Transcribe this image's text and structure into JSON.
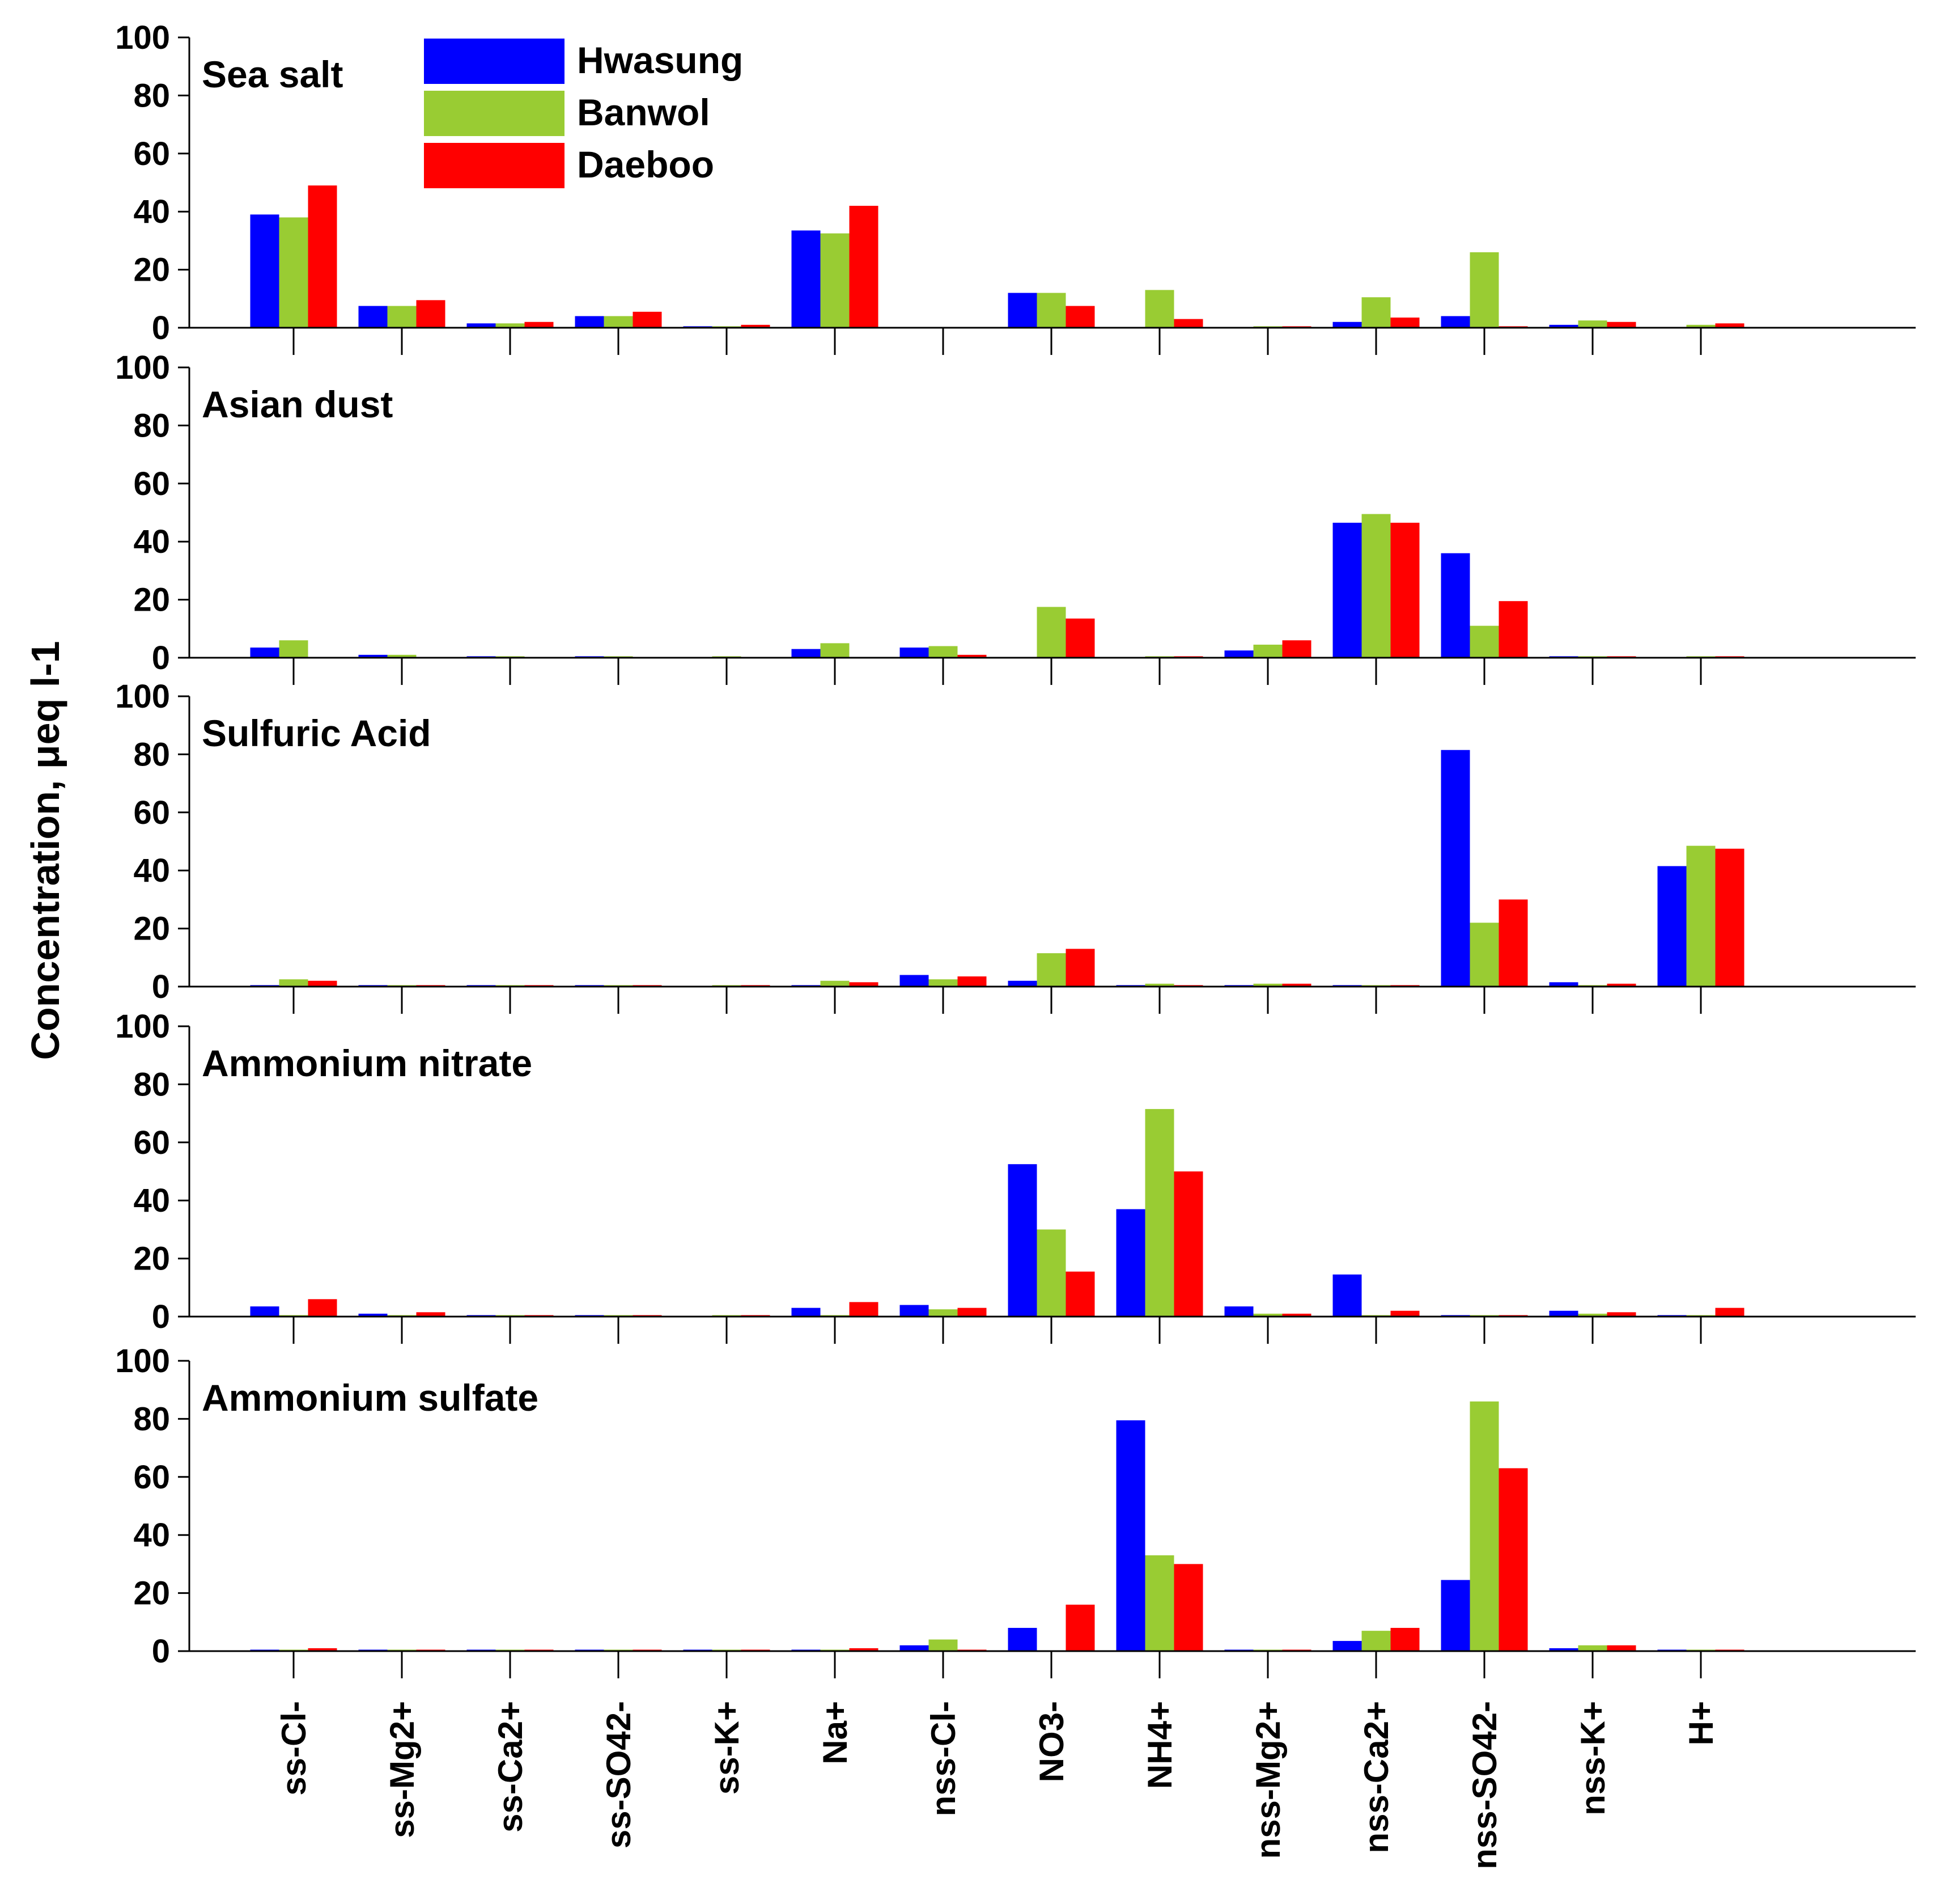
{
  "chart_data": {
    "type": "bar",
    "ylabel": "Concentration, μeq l-1",
    "ylim": [
      0,
      100
    ],
    "yticks": [
      "0",
      "20",
      "40",
      "60",
      "80",
      "100"
    ],
    "categories": [
      "ss-Cl-",
      "ss-Mg2+",
      "ss-Ca2+",
      "ss-SO42-",
      "ss-K+",
      "Na+",
      "nss-Cl-",
      "NO3-",
      "NH4+",
      "nss-Mg2+",
      "nss-Ca2+",
      "nss-SO42-",
      "nss-K+",
      "H+"
    ],
    "legend": [
      {
        "name": "Hwasung",
        "color": "#0000ff"
      },
      {
        "name": "Banwol",
        "color": "#99cc33"
      },
      {
        "name": "Daeboo",
        "color": "#ff0000"
      }
    ],
    "panels": [
      {
        "title": "Sea salt",
        "series": [
          {
            "name": "Hwasung",
            "values": [
              39,
              7.5,
              1.5,
              4,
              0.5,
              33.5,
              0,
              12,
              0,
              0,
              2,
              4,
              1,
              0
            ]
          },
          {
            "name": "Banwol",
            "values": [
              38,
              7.5,
              1.5,
              4,
              0.5,
              32.5,
              0,
              12,
              13,
              0.5,
              10.5,
              26,
              2.5,
              1
            ]
          },
          {
            "name": "Daeboo",
            "values": [
              49,
              9.5,
              2,
              5.5,
              1,
              42,
              0,
              7.5,
              3,
              0.5,
              3.5,
              0.5,
              2,
              1.5
            ]
          }
        ]
      },
      {
        "title": "Asian dust",
        "series": [
          {
            "name": "Hwasung",
            "values": [
              3.5,
              1,
              0.5,
              0.5,
              0,
              3,
              3.5,
              0,
              0,
              2.5,
              46.5,
              36,
              0.5,
              0
            ]
          },
          {
            "name": "Banwol",
            "values": [
              6,
              1,
              0.5,
              0.5,
              0.5,
              5,
              4,
              17.5,
              0.5,
              4.5,
              49.5,
              11,
              0.5,
              0.5
            ]
          },
          {
            "name": "Daeboo",
            "values": [
              0,
              0,
              0,
              0,
              0,
              0,
              1,
              13.5,
              0.5,
              6,
              46.5,
              19.5,
              0.5,
              0.5
            ]
          }
        ]
      },
      {
        "title": "Sulfuric Acid",
        "series": [
          {
            "name": "Hwasung",
            "values": [
              0.5,
              0.5,
              0.5,
              0.5,
              0,
              0.5,
              4,
              2,
              0.5,
              0.5,
              0.5,
              81.5,
              1.5,
              41.5
            ]
          },
          {
            "name": "Banwol",
            "values": [
              2.5,
              0.5,
              0.5,
              0.5,
              0.5,
              2,
              2.5,
              11.5,
              1,
              1,
              0.5,
              22,
              0.5,
              48.5
            ]
          },
          {
            "name": "Daeboo",
            "values": [
              2,
              0.5,
              0.5,
              0.5,
              0.5,
              1.5,
              3.5,
              13,
              0.5,
              1,
              0.5,
              30,
              1,
              47.5
            ]
          }
        ]
      },
      {
        "title": "Ammonium nitrate",
        "series": [
          {
            "name": "Hwasung",
            "values": [
              3.5,
              1,
              0.5,
              0.5,
              0,
              3,
              4,
              52.5,
              37,
              3.5,
              14.5,
              0.5,
              2,
              0.5
            ]
          },
          {
            "name": "Banwol",
            "values": [
              0.5,
              0.5,
              0.5,
              0.5,
              0.5,
              0.5,
              2.5,
              30,
              71.5,
              1,
              0.5,
              0.5,
              1,
              0.5
            ]
          },
          {
            "name": "Daeboo",
            "values": [
              6,
              1.5,
              0.5,
              0.5,
              0.5,
              5,
              3,
              15.5,
              50,
              1,
              2,
              0.5,
              1.5,
              3
            ]
          }
        ]
      },
      {
        "title": "Ammonium sulfate",
        "series": [
          {
            "name": "Hwasung",
            "values": [
              0.5,
              0.5,
              0.5,
              0.5,
              0.5,
              0.5,
              2,
              8,
              79.5,
              0.5,
              3.5,
              24.5,
              1,
              0.5
            ]
          },
          {
            "name": "Banwol",
            "values": [
              0.5,
              0.5,
              0.5,
              0.5,
              0.5,
              0.5,
              4,
              0,
              33,
              0.5,
              7,
              86,
              2,
              0.5
            ]
          },
          {
            "name": "Daeboo",
            "values": [
              1,
              0.5,
              0.5,
              0.5,
              0.5,
              1,
              0.5,
              16,
              30,
              0.5,
              8,
              63,
              2,
              0.5
            ]
          }
        ]
      }
    ]
  }
}
